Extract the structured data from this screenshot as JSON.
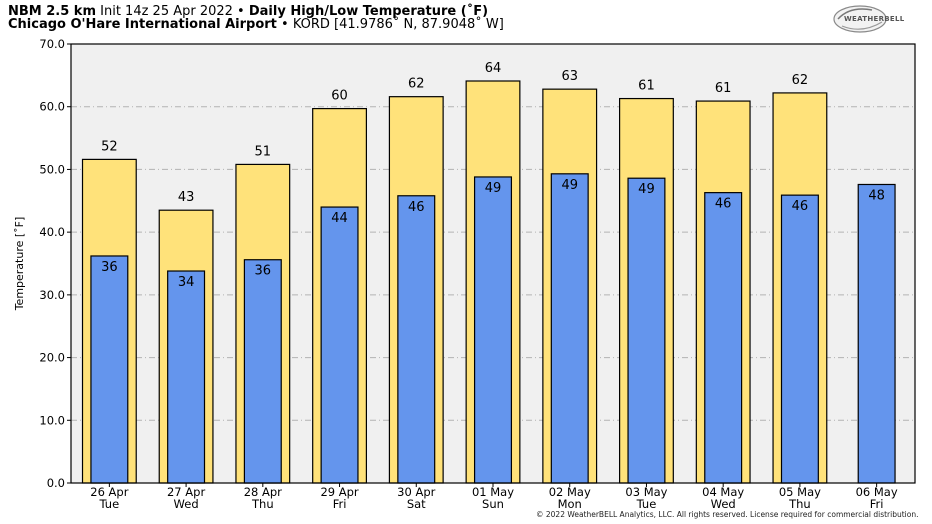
{
  "header": {
    "model_bold": "NBM 2.5 km",
    "init_text": " Init 14z 25 Apr 2022 • ",
    "product_bold": "Daily High/Low Temperature (˚F)",
    "location_bold": "Chicago O'Hare International Airport",
    "station_text": " • KORD [41.9786˚ N, 87.9048˚ W]"
  },
  "logo_text": "WEATHERBELL",
  "copyright": "© 2022 WeatherBELL Analytics, LLC. All rights reserved. License required for commercial distribution.",
  "chart_data": {
    "type": "bar",
    "ylabel": "Temperature [˚F]",
    "ylim": [
      0,
      70
    ],
    "yticks": [
      "0.0",
      "10.0",
      "20.0",
      "30.0",
      "40.0",
      "50.0",
      "60.0",
      "70.0"
    ],
    "grid": true,
    "categories": [
      [
        "26 Apr",
        "Tue"
      ],
      [
        "27 Apr",
        "Wed"
      ],
      [
        "28 Apr",
        "Thu"
      ],
      [
        "29 Apr",
        "Fri"
      ],
      [
        "30 Apr",
        "Sat"
      ],
      [
        "01 May",
        "Sun"
      ],
      [
        "02 May",
        "Mon"
      ],
      [
        "03 May",
        "Tue"
      ],
      [
        "04 May",
        "Wed"
      ],
      [
        "05 May",
        "Thu"
      ],
      [
        "06 May",
        "Fri"
      ]
    ],
    "series": [
      {
        "values": [
          51.6,
          43.5,
          50.8,
          59.7,
          61.6,
          64.1,
          62.8,
          61.3,
          60.9,
          62.2,
          null
        ],
        "labels": [
          "52",
          "43",
          "51",
          "60",
          "62",
          "64",
          "63",
          "61",
          "61",
          "62",
          ""
        ],
        "color": "#ffe27a"
      },
      {
        "values": [
          36.2,
          33.8,
          35.6,
          44.0,
          45.8,
          48.8,
          49.3,
          48.6,
          46.3,
          45.9,
          47.6
        ],
        "labels": [
          "36",
          "34",
          "36",
          "44",
          "46",
          "49",
          "49",
          "49",
          "46",
          "46",
          "48"
        ],
        "color": "#6495ed"
      }
    ]
  }
}
